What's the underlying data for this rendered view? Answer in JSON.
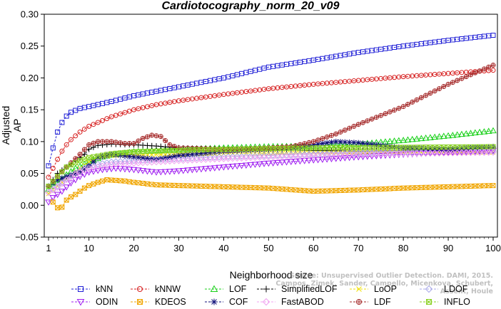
{
  "chart_data": {
    "type": "line",
    "title": "Cardiotocography_norm_20_v09",
    "xlabel": "Neighborhood size",
    "ylabel": "Adjusted AP",
    "xlim": [
      1,
      100
    ],
    "ylim": [
      -0.05,
      0.3
    ],
    "xticks": [
      1,
      10,
      20,
      30,
      40,
      50,
      60,
      70,
      80,
      90,
      100
    ],
    "yticks": [
      "−0.05",
      "0.00",
      "0.05",
      "0.10",
      "0.15",
      "0.20",
      "0.25",
      "0.30"
    ],
    "grid": false,
    "legend_position": "bottom",
    "series": [
      {
        "name": "kNN",
        "color": "#1f1fd6",
        "marker": "square",
        "anchors": [
          [
            1,
            0.062
          ],
          [
            2,
            0.09
          ],
          [
            3,
            0.115
          ],
          [
            4,
            0.13
          ],
          [
            5,
            0.14
          ],
          [
            6,
            0.146
          ],
          [
            8,
            0.152
          ],
          [
            10,
            0.155
          ],
          [
            15,
            0.163
          ],
          [
            20,
            0.172
          ],
          [
            25,
            0.179
          ],
          [
            30,
            0.186
          ],
          [
            40,
            0.2
          ],
          [
            50,
            0.217
          ],
          [
            60,
            0.228
          ],
          [
            70,
            0.24
          ],
          [
            80,
            0.25
          ],
          [
            90,
            0.259
          ],
          [
            100,
            0.267
          ]
        ]
      },
      {
        "name": "kNNW",
        "color": "#d62020",
        "marker": "circle",
        "anchors": [
          [
            1,
            0.044
          ],
          [
            2,
            0.058
          ],
          [
            3,
            0.072
          ],
          [
            4,
            0.085
          ],
          [
            5,
            0.095
          ],
          [
            6,
            0.103
          ],
          [
            8,
            0.115
          ],
          [
            10,
            0.124
          ],
          [
            15,
            0.139
          ],
          [
            20,
            0.15
          ],
          [
            25,
            0.158
          ],
          [
            30,
            0.164
          ],
          [
            40,
            0.174
          ],
          [
            50,
            0.183
          ],
          [
            60,
            0.19
          ],
          [
            70,
            0.196
          ],
          [
            80,
            0.202
          ],
          [
            90,
            0.207
          ],
          [
            100,
            0.212
          ]
        ]
      },
      {
        "name": "LOF",
        "color": "#18d018",
        "marker": "triangle",
        "anchors": [
          [
            1,
            0.025
          ],
          [
            3,
            0.035
          ],
          [
            5,
            0.048
          ],
          [
            7,
            0.058
          ],
          [
            10,
            0.068
          ],
          [
            13,
            0.076
          ],
          [
            16,
            0.08
          ],
          [
            20,
            0.084
          ],
          [
            30,
            0.088
          ],
          [
            40,
            0.09
          ],
          [
            50,
            0.092
          ],
          [
            60,
            0.093
          ],
          [
            70,
            0.096
          ],
          [
            80,
            0.102
          ],
          [
            90,
            0.109
          ],
          [
            100,
            0.117
          ]
        ]
      },
      {
        "name": "SimplifiedLOF",
        "color": "#000000",
        "marker": "plus",
        "anchors": [
          [
            1,
            0.03
          ],
          [
            3,
            0.05
          ],
          [
            5,
            0.06
          ],
          [
            7,
            0.07
          ],
          [
            9,
            0.08
          ],
          [
            10,
            0.088
          ],
          [
            12,
            0.094
          ],
          [
            15,
            0.096
          ],
          [
            20,
            0.095
          ],
          [
            25,
            0.093
          ],
          [
            30,
            0.09
          ],
          [
            40,
            0.088
          ],
          [
            50,
            0.087
          ],
          [
            60,
            0.086
          ],
          [
            70,
            0.085
          ],
          [
            80,
            0.086
          ],
          [
            90,
            0.088
          ],
          [
            100,
            0.09
          ]
        ]
      },
      {
        "name": "LoOP",
        "color": "#f0e000",
        "marker": "x",
        "anchors": [
          [
            1,
            0.018
          ],
          [
            3,
            0.03
          ],
          [
            5,
            0.042
          ],
          [
            8,
            0.058
          ],
          [
            10,
            0.068
          ],
          [
            12,
            0.075
          ],
          [
            15,
            0.078
          ],
          [
            20,
            0.079
          ],
          [
            30,
            0.08
          ],
          [
            40,
            0.081
          ],
          [
            60,
            0.082
          ],
          [
            80,
            0.083
          ],
          [
            100,
            0.083
          ]
        ]
      },
      {
        "name": "LDOF",
        "color": "#a8a8e8",
        "marker": "diamond",
        "anchors": [
          [
            1,
            0.02
          ],
          [
            3,
            0.03
          ],
          [
            5,
            0.042
          ],
          [
            8,
            0.055
          ],
          [
            10,
            0.062
          ],
          [
            15,
            0.068
          ],
          [
            20,
            0.07
          ],
          [
            30,
            0.073
          ],
          [
            40,
            0.076
          ],
          [
            60,
            0.08
          ],
          [
            80,
            0.083
          ],
          [
            100,
            0.085
          ]
        ]
      },
      {
        "name": "ODIN",
        "color": "#a020f0",
        "marker": "triangle-down",
        "anchors": [
          [
            1,
            0.005
          ],
          [
            2,
            0.012
          ],
          [
            4,
            0.022
          ],
          [
            6,
            0.035
          ],
          [
            8,
            0.045
          ],
          [
            10,
            0.052
          ],
          [
            13,
            0.056
          ],
          [
            16,
            0.058
          ],
          [
            20,
            0.056
          ],
          [
            25,
            0.052
          ],
          [
            30,
            0.054
          ],
          [
            40,
            0.06
          ],
          [
            50,
            0.066
          ],
          [
            60,
            0.071
          ],
          [
            70,
            0.076
          ],
          [
            80,
            0.08
          ],
          [
            90,
            0.083
          ],
          [
            100,
            0.086
          ]
        ]
      },
      {
        "name": "KDEOS",
        "color": "#f0a500",
        "marker": "square-x",
        "anchors": [
          [
            2,
            0.005
          ],
          [
            3,
            -0.004
          ],
          [
            4,
            -0.003
          ],
          [
            5,
            0.008
          ],
          [
            6,
            0.013
          ],
          [
            7,
            0.017
          ],
          [
            8,
            0.022
          ],
          [
            9,
            0.027
          ],
          [
            10,
            0.031
          ],
          [
            12,
            0.036
          ],
          [
            14,
            0.04
          ],
          [
            18,
            0.038
          ],
          [
            20,
            0.036
          ],
          [
            25,
            0.032
          ],
          [
            30,
            0.031
          ],
          [
            40,
            0.029
          ],
          [
            50,
            0.027
          ],
          [
            60,
            0.022
          ],
          [
            70,
            0.024
          ],
          [
            80,
            0.027
          ],
          [
            90,
            0.029
          ],
          [
            100,
            0.031
          ]
        ]
      },
      {
        "name": "COF",
        "color": "#10107a",
        "marker": "star",
        "anchors": [
          [
            1,
            0.03
          ],
          [
            3,
            0.04
          ],
          [
            5,
            0.045
          ],
          [
            8,
            0.052
          ],
          [
            10,
            0.062
          ],
          [
            12,
            0.075
          ],
          [
            15,
            0.08
          ],
          [
            20,
            0.076
          ],
          [
            25,
            0.072
          ],
          [
            30,
            0.078
          ],
          [
            40,
            0.085
          ],
          [
            50,
            0.088
          ],
          [
            55,
            0.09
          ],
          [
            60,
            0.095
          ],
          [
            65,
            0.1
          ],
          [
            70,
            0.098
          ],
          [
            80,
            0.09
          ],
          [
            90,
            0.088
          ],
          [
            100,
            0.092
          ]
        ]
      },
      {
        "name": "FastABOD",
        "color": "#f0a0f0",
        "marker": "diamond",
        "anchors": [
          [
            1,
            0.02
          ],
          [
            3,
            0.028
          ],
          [
            5,
            0.04
          ],
          [
            8,
            0.052
          ],
          [
            10,
            0.058
          ],
          [
            15,
            0.064
          ],
          [
            20,
            0.066
          ],
          [
            30,
            0.07
          ],
          [
            40,
            0.073
          ],
          [
            60,
            0.078
          ],
          [
            80,
            0.081
          ],
          [
            100,
            0.083
          ]
        ]
      },
      {
        "name": "LDF",
        "color": "#a52a2a",
        "marker": "circle-plus",
        "anchors": [
          [
            1,
            0.03
          ],
          [
            3,
            0.045
          ],
          [
            5,
            0.06
          ],
          [
            8,
            0.08
          ],
          [
            10,
            0.095
          ],
          [
            12,
            0.1
          ],
          [
            15,
            0.1
          ],
          [
            18,
            0.097
          ],
          [
            20,
            0.097
          ],
          [
            22,
            0.105
          ],
          [
            24,
            0.11
          ],
          [
            26,
            0.108
          ],
          [
            28,
            0.095
          ],
          [
            30,
            0.09
          ],
          [
            40,
            0.088
          ],
          [
            50,
            0.09
          ],
          [
            55,
            0.092
          ],
          [
            60,
            0.1
          ],
          [
            65,
            0.112
          ],
          [
            70,
            0.127
          ],
          [
            80,
            0.155
          ],
          [
            90,
            0.19
          ],
          [
            100,
            0.22
          ]
        ]
      },
      {
        "name": "INFLO",
        "color": "#88d020",
        "marker": "square-x",
        "anchors": [
          [
            1,
            0.03
          ],
          [
            3,
            0.045
          ],
          [
            5,
            0.06
          ],
          [
            8,
            0.07
          ],
          [
            10,
            0.075
          ],
          [
            15,
            0.081
          ],
          [
            20,
            0.084
          ],
          [
            30,
            0.086
          ],
          [
            40,
            0.088
          ],
          [
            60,
            0.09
          ],
          [
            80,
            0.091
          ],
          [
            100,
            0.092
          ]
        ]
      }
    ]
  },
  "watermark": {
    "line1": "Source: Unsupervised Outlier Detection. DAMI, 2015.",
    "line2": "Campos, Zimek, Sander, Campello, Micenkova, Schubert, Assent, Houle"
  }
}
